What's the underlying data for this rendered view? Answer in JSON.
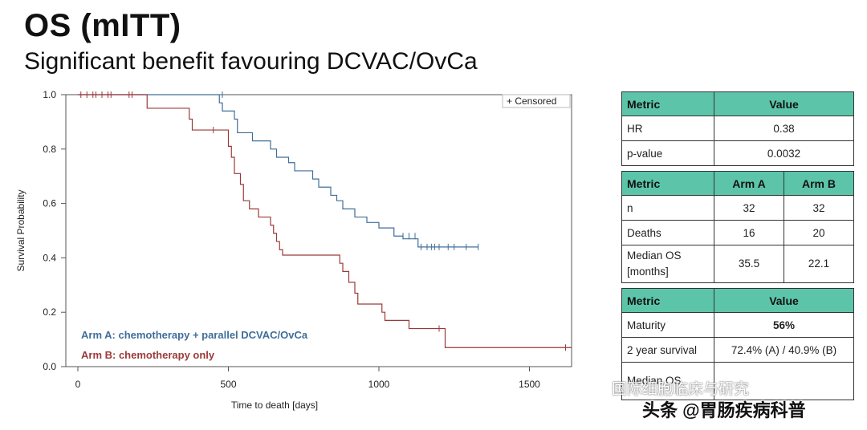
{
  "header": {
    "title": "OS (mITT)",
    "subtitle": "Significant benefit favouring DCVAC/OvCa"
  },
  "chart_data": {
    "type": "line",
    "xlabel": "Time to death [days]",
    "ylabel": "Survival Probability",
    "xlim": [
      -40,
      1640
    ],
    "ylim": [
      0,
      1.0
    ],
    "x_ticks": [
      "0",
      "500",
      "1000",
      "1500"
    ],
    "x_tick_values": [
      0,
      500,
      1000,
      1500
    ],
    "y_ticks": [
      "0.0",
      "0.2",
      "0.4",
      "0.6",
      "0.8",
      "1.0"
    ],
    "y_tick_values": [
      0.0,
      0.2,
      0.4,
      0.6,
      0.8,
      1.0
    ],
    "legend_censored": "+ Censored",
    "series": [
      {
        "name": "Arm A: chemotherapy + parallel DCVAC/OvCa",
        "color": "#3f6e9a",
        "steps": [
          [
            0,
            1.0
          ],
          [
            460,
            1.0
          ],
          [
            470,
            0.97
          ],
          [
            480,
            0.94
          ],
          [
            520,
            0.91
          ],
          [
            530,
            0.86
          ],
          [
            580,
            0.83
          ],
          [
            640,
            0.8
          ],
          [
            660,
            0.77
          ],
          [
            700,
            0.75
          ],
          [
            720,
            0.72
          ],
          [
            780,
            0.69
          ],
          [
            800,
            0.66
          ],
          [
            840,
            0.63
          ],
          [
            860,
            0.61
          ],
          [
            880,
            0.58
          ],
          [
            920,
            0.55
          ],
          [
            960,
            0.53
          ],
          [
            1000,
            0.51
          ],
          [
            1050,
            0.48
          ],
          [
            1080,
            0.47
          ],
          [
            1130,
            0.44
          ],
          [
            1330,
            0.44
          ]
        ],
        "censored": [
          [
            480,
            1.0
          ],
          [
            1080,
            0.48
          ],
          [
            1100,
            0.48
          ],
          [
            1120,
            0.48
          ],
          [
            1140,
            0.44
          ],
          [
            1160,
            0.44
          ],
          [
            1175,
            0.44
          ],
          [
            1185,
            0.44
          ],
          [
            1200,
            0.44
          ],
          [
            1230,
            0.44
          ],
          [
            1250,
            0.44
          ],
          [
            1290,
            0.44
          ],
          [
            1330,
            0.44
          ]
        ]
      },
      {
        "name": "Arm B: chemotherapy only",
        "color": "#9b3a3a",
        "steps": [
          [
            0,
            1.0
          ],
          [
            220,
            1.0
          ],
          [
            230,
            0.95
          ],
          [
            370,
            0.91
          ],
          [
            380,
            0.87
          ],
          [
            500,
            0.81
          ],
          [
            510,
            0.77
          ],
          [
            520,
            0.71
          ],
          [
            540,
            0.67
          ],
          [
            550,
            0.61
          ],
          [
            570,
            0.58
          ],
          [
            600,
            0.55
          ],
          [
            640,
            0.52
          ],
          [
            650,
            0.49
          ],
          [
            660,
            0.46
          ],
          [
            670,
            0.43
          ],
          [
            680,
            0.41
          ],
          [
            870,
            0.38
          ],
          [
            880,
            0.35
          ],
          [
            900,
            0.31
          ],
          [
            920,
            0.27
          ],
          [
            930,
            0.23
          ],
          [
            1010,
            0.2
          ],
          [
            1020,
            0.17
          ],
          [
            1100,
            0.14
          ],
          [
            1220,
            0.07
          ],
          [
            1640,
            0.07
          ]
        ],
        "censored": [
          [
            10,
            1.0
          ],
          [
            30,
            1.0
          ],
          [
            50,
            1.0
          ],
          [
            60,
            1.0
          ],
          [
            80,
            1.0
          ],
          [
            100,
            1.0
          ],
          [
            110,
            1.0
          ],
          [
            170,
            1.0
          ],
          [
            180,
            1.0
          ],
          [
            450,
            0.87
          ],
          [
            1200,
            0.14
          ],
          [
            1620,
            0.07
          ]
        ]
      }
    ]
  },
  "tables": [
    {
      "headers": [
        "Metric",
        "Value"
      ],
      "rows": [
        [
          "HR",
          "0.38"
        ],
        [
          "p-value",
          "0.0032"
        ]
      ]
    },
    {
      "headers": [
        "Metric",
        "Arm A",
        "Arm B"
      ],
      "rows": [
        [
          "n",
          "32",
          "32"
        ],
        [
          "Deaths",
          "16",
          "20"
        ],
        [
          "Median OS [months]",
          "35.5",
          "22.1"
        ]
      ]
    },
    {
      "headers": [
        "Metric",
        "Value"
      ],
      "rows": [
        [
          "Maturity",
          "56%"
        ],
        [
          "2 year survival",
          "72.4% (A) / 40.9% (B)"
        ],
        [
          "Median OS",
          ""
        ]
      ]
    }
  ],
  "watermark": {
    "line1": "国际细胞临床与研究",
    "line2": "头条 @胃肠疾病科普"
  }
}
